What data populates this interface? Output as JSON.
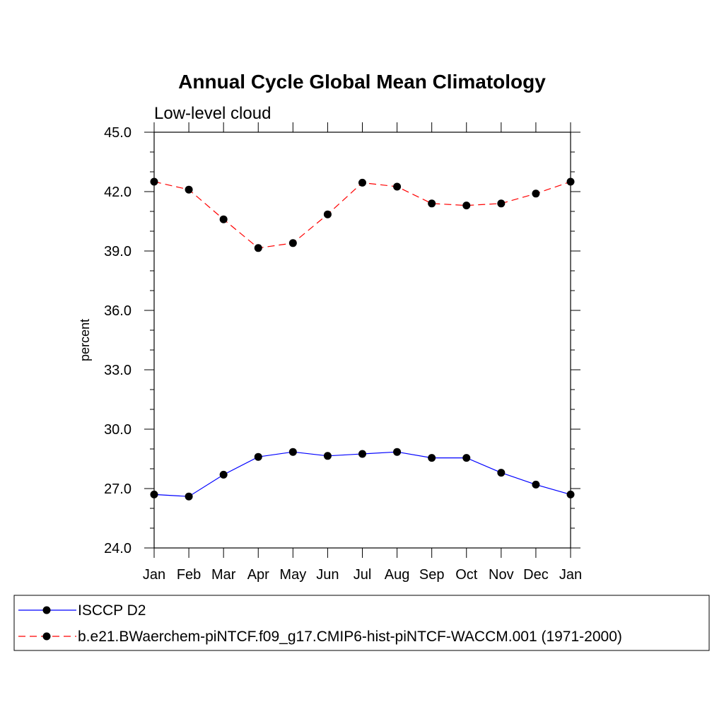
{
  "chart_data": {
    "type": "line",
    "title": "Annual Cycle Global Mean Climatology",
    "subtitle": "Low-level cloud",
    "xlabel": "",
    "ylabel": "percent",
    "categories": [
      "Jan",
      "Feb",
      "Mar",
      "Apr",
      "May",
      "Jun",
      "Jul",
      "Aug",
      "Sep",
      "Oct",
      "Nov",
      "Dec",
      "Jan"
    ],
    "ylim": [
      24.0,
      45.0
    ],
    "yticks": [
      "24.0",
      "27.0",
      "30.0",
      "33.0",
      "36.0",
      "39.0",
      "42.0",
      "45.0"
    ],
    "grid": false,
    "legend_position": "bottom",
    "series": [
      {
        "name": "ISCCP D2",
        "color": "#0000ff",
        "dash": "solid",
        "marker": "filled-circle",
        "values": [
          26.7,
          26.6,
          27.7,
          28.6,
          28.85,
          28.65,
          28.75,
          28.85,
          28.55,
          28.55,
          27.8,
          27.2,
          26.7
        ]
      },
      {
        "name": "b.e21.BWaerchem-piNTCF.f09_g17.CMIP6-hist-piNTCF-WACCM.001 (1971-2000)",
        "color": "#ff0000",
        "dash": "dashed",
        "marker": "filled-circle",
        "values": [
          42.5,
          42.1,
          40.6,
          39.15,
          39.4,
          40.85,
          42.45,
          42.25,
          41.4,
          41.3,
          41.4,
          41.9,
          42.5
        ]
      }
    ]
  }
}
